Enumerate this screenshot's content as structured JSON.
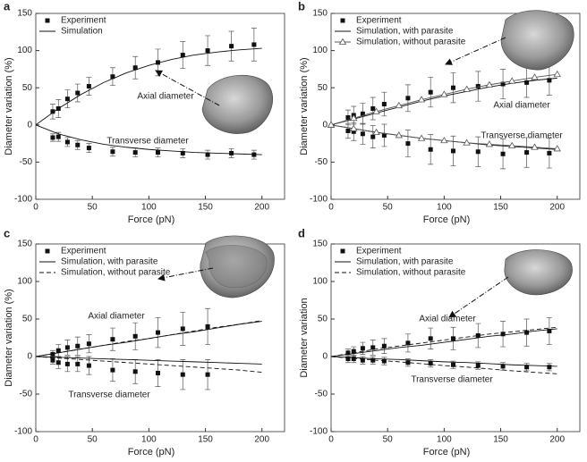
{
  "chart_data": [
    {
      "type": "line",
      "panel": "a",
      "x_label": "Force (pN)",
      "y_label": "Diameter variation (%)",
      "xlim": [
        0,
        220
      ],
      "ylim": [
        -100,
        150
      ],
      "xticks": [
        0,
        50,
        100,
        150,
        200
      ],
      "yticks": [
        -100,
        -50,
        0,
        50,
        100,
        150
      ],
      "annotations": [
        "Axial diameter",
        "Transverse diameter"
      ],
      "series": [
        {
          "name": "Experiment",
          "color": "#111111",
          "style": "square",
          "curves": [
            {
              "x": [
                15,
                20,
                28,
                37,
                47,
                68,
                88,
                108,
                130,
                152,
                173,
                193
              ],
              "values": [
                18,
                22,
                35,
                43,
                52,
                65,
                77,
                84,
                94,
                100,
                106,
                108
              ],
              "errors": [
                10,
                12,
                12,
                12,
                12,
                12,
                15,
                18,
                18,
                20,
                20,
                22
              ]
            },
            {
              "x": [
                15,
                20,
                28,
                37,
                47,
                68,
                88,
                108,
                130,
                152,
                173,
                193
              ],
              "values": [
                -17,
                -16,
                -23,
                -27,
                -31,
                -36,
                -37,
                -37,
                -38,
                -40,
                -38,
                -40
              ],
              "errors": [
                5,
                6,
                6,
                6,
                6,
                6,
                6,
                6,
                6,
                6,
                6,
                6
              ]
            }
          ]
        },
        {
          "name": "Simulation",
          "color": "#111111",
          "style": "solid",
          "curves": [
            {
              "x": [
                0,
                20,
                40,
                60,
                80,
                100,
                120,
                140,
                160,
                180,
                200
              ],
              "values": [
                0,
                22,
                41,
                57,
                70,
                80,
                88,
                94,
                98,
                101,
                103
              ]
            },
            {
              "x": [
                0,
                20,
                40,
                60,
                80,
                100,
                120,
                140,
                160,
                180,
                200
              ],
              "values": [
                0,
                -12,
                -20,
                -26,
                -30,
                -33,
                -35,
                -37,
                -38,
                -39,
                -40
              ]
            }
          ]
        }
      ]
    },
    {
      "type": "line",
      "panel": "b",
      "x_label": "Force (pN)",
      "y_label": "Diameter variation (%)",
      "xlim": [
        0,
        220
      ],
      "ylim": [
        -100,
        150
      ],
      "xticks": [
        0,
        50,
        100,
        150,
        200
      ],
      "yticks": [
        -100,
        -50,
        0,
        50,
        100,
        150
      ],
      "annotations": [
        "Axial diameter",
        "Transverse diameter"
      ],
      "series": [
        {
          "name": "Experiment",
          "color": "#111111",
          "style": "square",
          "curves": [
            {
              "x": [
                15,
                20,
                28,
                37,
                47,
                68,
                88,
                108,
                130,
                152,
                173,
                193
              ],
              "values": [
                10,
                13,
                15,
                22,
                28,
                36,
                44,
                50,
                52,
                55,
                57,
                60
              ],
              "errors": [
                10,
                12,
                14,
                15,
                16,
                18,
                20,
                20,
                20,
                20,
                20,
                20
              ]
            },
            {
              "x": [
                15,
                20,
                28,
                37,
                47,
                68,
                88,
                108,
                130,
                152,
                173,
                193
              ],
              "values": [
                -8,
                -9,
                -12,
                -16,
                -14,
                -25,
                -33,
                -35,
                -36,
                -39,
                -37,
                -38
              ],
              "errors": [
                10,
                12,
                14,
                15,
                15,
                18,
                20,
                20,
                20,
                20,
                20,
                20
              ]
            }
          ]
        },
        {
          "name": "Simulation, with parasite",
          "color": "#111111",
          "style": "solid",
          "curves": [
            {
              "x": [
                0,
                20,
                40,
                60,
                80,
                100,
                120,
                140,
                160,
                180,
                200
              ],
              "values": [
                0,
                8,
                16,
                24,
                32,
                39,
                45,
                51,
                56,
                60,
                63
              ]
            },
            {
              "x": [
                0,
                20,
                40,
                60,
                80,
                100,
                120,
                140,
                160,
                180,
                200
              ],
              "values": [
                0,
                -5,
                -10,
                -14,
                -18,
                -21,
                -24,
                -27,
                -29,
                -31,
                -33
              ]
            }
          ]
        },
        {
          "name": "Simulation, without parasite",
          "color": "#555555",
          "style": "triangle",
          "curves": [
            {
              "x": [
                0,
                20,
                40,
                60,
                80,
                100,
                120,
                140,
                160,
                180,
                200
              ],
              "values": [
                0,
                9,
                18,
                26,
                34,
                41,
                48,
                54,
                59,
                64,
                68
              ]
            },
            {
              "x": [
                0,
                20,
                40,
                60,
                80,
                100,
                120,
                140,
                160,
                180,
                200
              ],
              "values": [
                0,
                -5,
                -10,
                -14,
                -18,
                -21,
                -24,
                -26,
                -28,
                -30,
                -32
              ]
            }
          ]
        }
      ]
    },
    {
      "type": "line",
      "panel": "c",
      "x_label": "Force (pN)",
      "y_label": "Diameter variation (%)",
      "xlim": [
        0,
        220
      ],
      "ylim": [
        -100,
        150
      ],
      "xticks": [
        0,
        50,
        100,
        150,
        200
      ],
      "yticks": [
        -100,
        -50,
        0,
        50,
        100,
        150
      ],
      "annotations": [
        "Axial diameter",
        "Transverse diameter"
      ],
      "series": [
        {
          "name": "Experiment",
          "color": "#111111",
          "style": "square",
          "curves": [
            {
              "x": [
                15,
                20,
                28,
                37,
                47,
                68,
                88,
                108,
                130,
                152
              ],
              "values": [
                3,
                8,
                12,
                14,
                17,
                23,
                27,
                32,
                37,
                40
              ],
              "errors": [
                5,
                8,
                10,
                12,
                12,
                15,
                18,
                20,
                22,
                24
              ]
            },
            {
              "x": [
                15,
                20,
                28,
                37,
                47,
                68,
                88,
                108,
                130,
                152
              ],
              "values": [
                -5,
                -8,
                -10,
                -10,
                -12,
                -18,
                -20,
                -22,
                -24,
                -24
              ],
              "errors": [
                5,
                8,
                10,
                10,
                12,
                15,
                16,
                18,
                20,
                20
              ]
            }
          ]
        },
        {
          "name": "Simulation, with parasite",
          "color": "#111111",
          "style": "solid",
          "curves": [
            {
              "x": [
                0,
                20,
                40,
                60,
                80,
                100,
                120,
                140,
                160,
                180,
                200
              ],
              "values": [
                0,
                5,
                10,
                15,
                19,
                24,
                29,
                33,
                38,
                43,
                47
              ]
            },
            {
              "x": [
                0,
                20,
                40,
                60,
                80,
                100,
                120,
                140,
                160,
                180,
                200
              ],
              "values": [
                0,
                -1,
                -2,
                -3,
                -4,
                -5,
                -6,
                -7,
                -8,
                -9,
                -10
              ]
            }
          ]
        },
        {
          "name": "Simulation, without parasite",
          "color": "#111111",
          "style": "dashed",
          "curves": [
            {
              "x": [
                0,
                20,
                40,
                60,
                80,
                100,
                120,
                140,
                160,
                180,
                200
              ],
              "values": [
                0,
                5,
                10,
                15,
                20,
                24,
                29,
                34,
                39,
                43,
                48
              ]
            },
            {
              "x": [
                0,
                20,
                40,
                60,
                80,
                100,
                120,
                140,
                160,
                180,
                200
              ],
              "values": [
                0,
                -2,
                -4,
                -6,
                -8,
                -10,
                -12,
                -14,
                -16,
                -18,
                -21
              ]
            }
          ]
        }
      ]
    },
    {
      "type": "line",
      "panel": "d",
      "x_label": "Force (pN)",
      "y_label": "Diameter variation",
      "xlim": [
        0,
        220
      ],
      "ylim": [
        -100,
        150
      ],
      "xticks": [
        0,
        50,
        100,
        150,
        200
      ],
      "yticks": [
        -100,
        -50,
        0,
        50,
        100,
        150
      ],
      "annotations": [
        "Axial diameter",
        "Transverse diameter"
      ],
      "series": [
        {
          "name": "Experiment",
          "color": "#111111",
          "style": "square",
          "curves": [
            {
              "x": [
                15,
                20,
                28,
                37,
                47,
                68,
                88,
                108,
                130,
                152,
                173,
                193
              ],
              "values": [
                5,
                7,
                11,
                12,
                14,
                18,
                24,
                24,
                28,
                30,
                32,
                34
              ],
              "errors": [
                5,
                6,
                8,
                10,
                10,
                12,
                14,
                15,
                16,
                17,
                18,
                18
              ]
            },
            {
              "x": [
                15,
                20,
                28,
                37,
                47,
                68,
                88,
                108,
                130,
                152,
                173,
                193
              ],
              "values": [
                -3,
                -3,
                -5,
                -5,
                -6,
                -8,
                -9,
                -11,
                -12,
                -13,
                -14,
                -14
              ],
              "errors": [
                5,
                5,
                5,
                5,
                5,
                5,
                5,
                5,
                5,
                5,
                5,
                5
              ]
            }
          ]
        },
        {
          "name": "Simulation, with parasite",
          "color": "#111111",
          "style": "solid",
          "curves": [
            {
              "x": [
                0,
                20,
                40,
                60,
                80,
                100,
                120,
                140,
                160,
                180,
                200
              ],
              "values": [
                0,
                4,
                8,
                12,
                15,
                19,
                23,
                27,
                30,
                34,
                37
              ]
            },
            {
              "x": [
                0,
                20,
                40,
                60,
                80,
                100,
                120,
                140,
                160,
                180,
                200
              ],
              "values": [
                0,
                -1.5,
                -3,
                -4,
                -5.5,
                -7,
                -8,
                -9.5,
                -11,
                -12,
                -13
              ]
            }
          ]
        },
        {
          "name": "Simulation, without parasite",
          "color": "#111111",
          "style": "dashed",
          "curves": [
            {
              "x": [
                0,
                20,
                40,
                60,
                80,
                100,
                120,
                140,
                160,
                180,
                200
              ],
              "values": [
                0,
                5,
                10,
                14,
                18,
                22,
                26,
                30,
                33,
                36,
                39
              ]
            },
            {
              "x": [
                0,
                20,
                40,
                60,
                80,
                100,
                120,
                140,
                160,
                180,
                200
              ],
              "values": [
                0,
                -2.5,
                -5,
                -7,
                -9.5,
                -12,
                -14,
                -16.5,
                -19,
                -21,
                -23
              ]
            }
          ]
        }
      ]
    }
  ]
}
